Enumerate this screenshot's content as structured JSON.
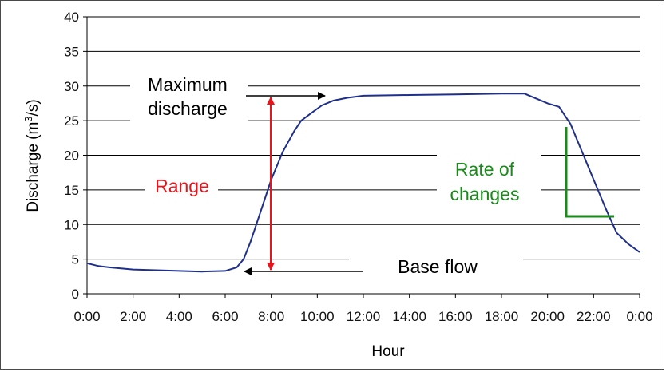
{
  "chart_data": {
    "type": "line",
    "title": "",
    "xlabel": "Hour",
    "ylabel_base": "Discharge (m",
    "ylabel_sup": "3",
    "ylabel_tail": "/s)",
    "ylim": [
      0,
      40
    ],
    "yticks": [
      0,
      5,
      10,
      15,
      20,
      25,
      30,
      35,
      40
    ],
    "xlim": [
      0,
      24
    ],
    "xticks": [
      0,
      2,
      4,
      6,
      8,
      10,
      12,
      14,
      16,
      18,
      20,
      22,
      24
    ],
    "xtick_labels": [
      "0:00",
      "2:00",
      "4:00",
      "6:00",
      "8:00",
      "10:00",
      "12:00",
      "14:00",
      "16:00",
      "18:00",
      "20:00",
      "22:00",
      "0:00"
    ],
    "grid": true,
    "series": [
      {
        "name": "Discharge",
        "color": "#1f2f8c",
        "x": [
          0,
          0.5,
          1,
          2,
          3,
          4,
          5,
          6,
          6.5,
          6.8,
          7.1,
          7.5,
          8,
          8.5,
          9,
          9.3,
          9.7,
          10.2,
          10.7,
          11.3,
          12,
          14,
          16,
          18,
          19,
          20,
          20.5,
          21,
          21.5,
          22,
          22.5,
          23,
          23.5,
          24
        ],
        "y": [
          4.4,
          4.0,
          3.8,
          3.5,
          3.4,
          3.3,
          3.2,
          3.3,
          3.8,
          5.0,
          7.5,
          11.5,
          16.5,
          20.5,
          23.5,
          25.0,
          26.0,
          27.2,
          27.9,
          28.3,
          28.6,
          28.7,
          28.8,
          28.9,
          28.9,
          27.5,
          27.0,
          24.5,
          20.5,
          16.5,
          12.5,
          8.8,
          7.2,
          6.0
        ]
      }
    ],
    "annotations": {
      "max_label_line1": "Maximum",
      "max_label_line2": "discharge",
      "range_label": "Range",
      "rate_label_line1": "Rate of",
      "rate_label_line2": "changes",
      "base_label": "Base flow"
    },
    "colors": {
      "range": "#e8141c",
      "rate": "#1a8a1a",
      "text": "#000000",
      "grid": "#000000"
    }
  }
}
